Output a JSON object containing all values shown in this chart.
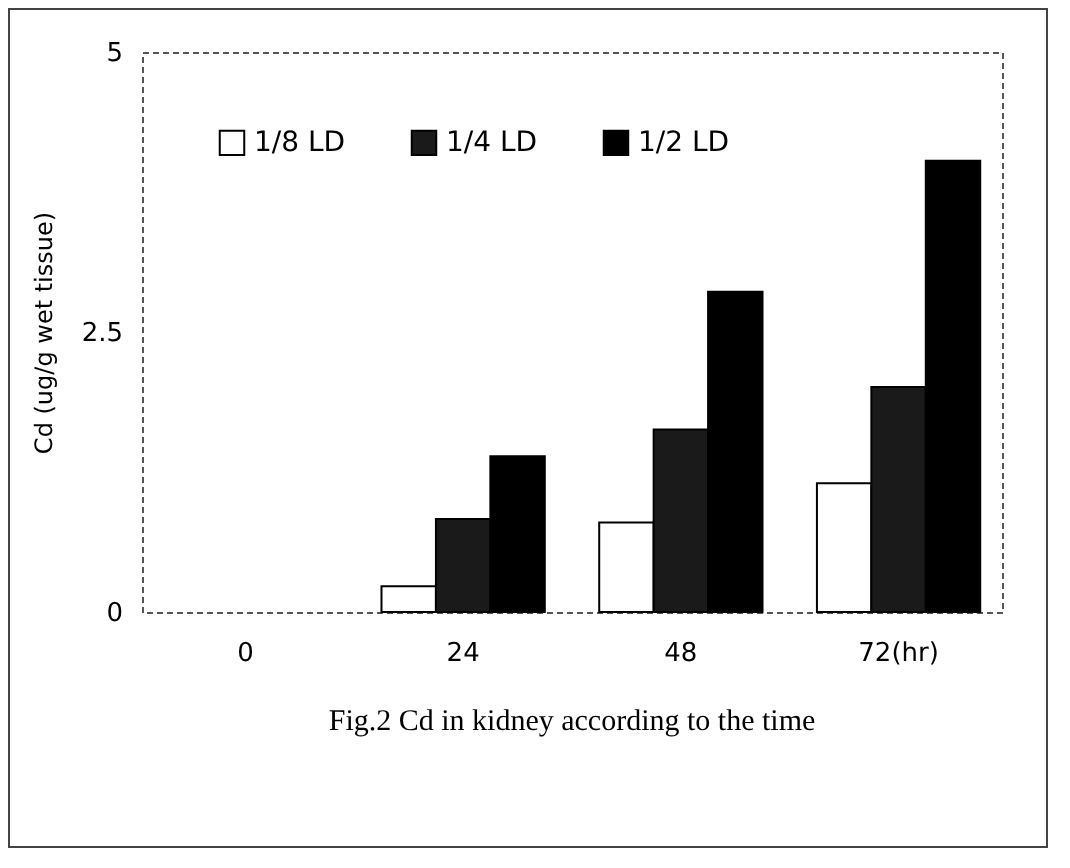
{
  "chart_data": {
    "type": "bar",
    "title": "Fig.2 Cd in kidney according to the time",
    "ylabel": "Cd (ug/g wet tissue)",
    "categories": [
      "0",
      "24",
      "48",
      "72(hr)"
    ],
    "series": [
      {
        "name": "1/8 LD",
        "color": "#ffffff",
        "values": [
          0,
          0.23,
          0.8,
          1.15
        ]
      },
      {
        "name": "1/4 LD",
        "color": "#1a1a1a",
        "values": [
          0,
          0.83,
          1.63,
          2.01
        ]
      },
      {
        "name": "1/2 LD",
        "color": "#000000",
        "values": [
          0,
          1.39,
          2.86,
          4.03
        ]
      }
    ],
    "ylim": [
      0,
      5
    ],
    "yticks": [
      0,
      2.5,
      5
    ],
    "grid": false,
    "legend": "top left"
  }
}
